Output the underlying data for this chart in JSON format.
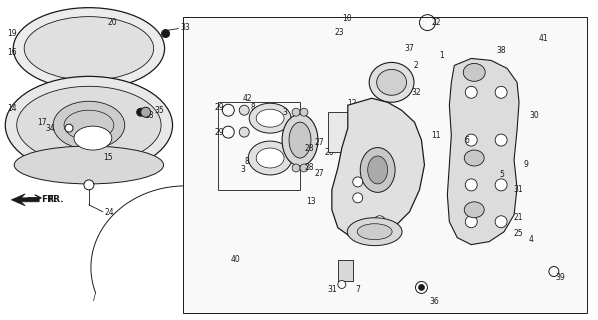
{
  "bg_color": "#ffffff",
  "line_color": "#1a1a1a",
  "fig_width": 5.98,
  "fig_height": 3.2,
  "dpi": 100
}
